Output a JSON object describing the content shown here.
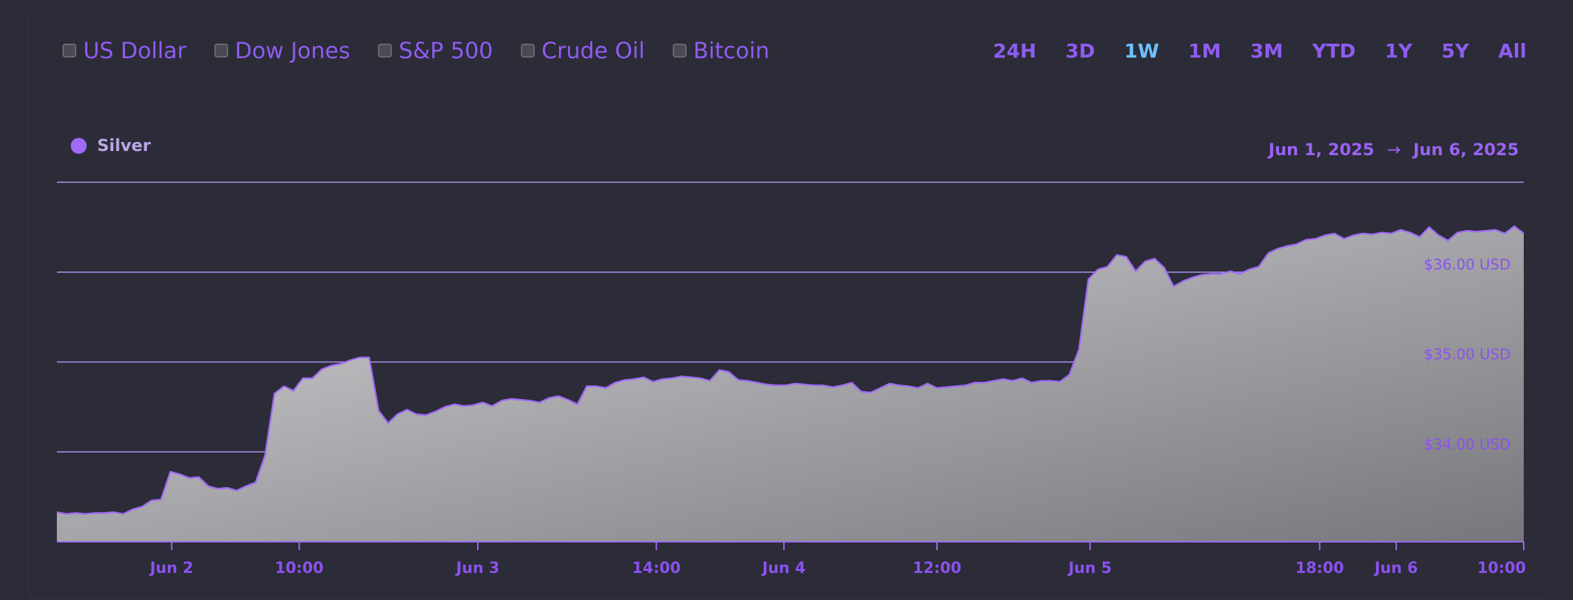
{
  "compare_toggles": [
    {
      "label": "US Dollar",
      "checked": false
    },
    {
      "label": "Dow Jones",
      "checked": false
    },
    {
      "label": "S&P 500",
      "checked": false
    },
    {
      "label": "Crude Oil",
      "checked": false
    },
    {
      "label": "Bitcoin",
      "checked": false
    }
  ],
  "time_ranges": [
    "24H",
    "3D",
    "1W",
    "1M",
    "3M",
    "YTD",
    "1Y",
    "5Y",
    "All"
  ],
  "active_range": "1W",
  "legend": {
    "label": "Silver"
  },
  "date_range": {
    "start": "Jun 1, 2025",
    "arrow": "→",
    "end": "Jun 6, 2025"
  },
  "colors": {
    "accent": "#8f5cf0",
    "active_range": "#6cc0ff",
    "series_line": "#a06af5",
    "area_fill_start": "#d4d4d6",
    "area_fill_end": "#77767c",
    "gridline": "#b49af5"
  },
  "chart_data": {
    "type": "area",
    "series": [
      {
        "name": "Silver",
        "values": [
          33.33,
          33.31,
          33.32,
          33.31,
          33.32,
          33.32,
          33.33,
          33.31,
          33.36,
          33.39,
          33.46,
          33.47,
          33.78,
          33.75,
          33.71,
          33.72,
          33.62,
          33.59,
          33.6,
          33.57,
          33.62,
          33.66,
          33.96,
          34.65,
          34.73,
          34.68,
          34.82,
          34.82,
          34.92,
          34.96,
          34.98,
          35.02,
          35.05,
          35.05,
          34.46,
          34.32,
          34.42,
          34.47,
          34.42,
          34.41,
          34.45,
          34.5,
          34.53,
          34.51,
          34.52,
          34.55,
          34.51,
          34.57,
          34.59,
          34.58,
          34.57,
          34.55,
          34.6,
          34.62,
          34.58,
          34.53,
          34.73,
          34.73,
          34.71,
          34.77,
          34.8,
          34.81,
          34.83,
          34.78,
          34.81,
          34.82,
          34.84,
          34.83,
          34.82,
          34.79,
          34.91,
          34.89,
          34.8,
          34.79,
          34.77,
          34.75,
          34.74,
          34.74,
          34.76,
          34.75,
          34.74,
          34.74,
          34.72,
          34.74,
          34.77,
          34.67,
          34.66,
          34.71,
          34.76,
          34.74,
          34.73,
          34.71,
          34.76,
          34.71,
          34.72,
          34.73,
          34.74,
          34.77,
          34.77,
          34.79,
          34.81,
          34.79,
          34.82,
          34.77,
          34.79,
          34.79,
          34.78,
          34.86,
          35.14,
          35.92,
          36.03,
          36.06,
          36.19,
          36.17,
          36.01,
          36.12,
          36.15,
          36.05,
          35.84,
          35.9,
          35.94,
          35.97,
          35.98,
          35.98,
          36.01,
          35.98,
          36.03,
          36.06,
          36.21,
          36.26,
          36.29,
          36.31,
          36.36,
          36.37,
          36.41,
          36.43,
          36.37,
          36.41,
          36.43,
          36.42,
          36.44,
          36.43,
          36.47,
          36.44,
          36.39,
          36.5,
          36.41,
          36.35,
          36.44,
          36.46,
          36.45,
          36.46,
          36.47,
          36.43,
          36.51,
          36.43
        ]
      }
    ],
    "ylim": [
      33,
      37
    ],
    "yticks": [
      34,
      35,
      36
    ],
    "ytick_labels": [
      "$34.00 USD",
      "$35.00 USD",
      "$36.00 USD"
    ],
    "x_range": [
      "2025-06-01 15:00",
      "2025-06-06 10:00"
    ],
    "x_ticks": [
      {
        "label": "Jun 2",
        "time": "2025-06-02 00:00"
      },
      {
        "label": "10:00",
        "time": "2025-06-02 10:00"
      },
      {
        "label": "Jun 3",
        "time": "2025-06-03 00:00"
      },
      {
        "label": "14:00",
        "time": "2025-06-03 14:00"
      },
      {
        "label": "Jun 4",
        "time": "2025-06-04 00:00"
      },
      {
        "label": "12:00",
        "time": "2025-06-04 12:00"
      },
      {
        "label": "Jun 5",
        "time": "2025-06-05 00:00"
      },
      {
        "label": "18:00",
        "time": "2025-06-05 18:00"
      },
      {
        "label": "Jun 6",
        "time": "2025-06-06 00:00"
      },
      {
        "label": "10:00",
        "time": "2025-06-06 10:00"
      }
    ],
    "grid": true,
    "legend_position": "top-left"
  }
}
